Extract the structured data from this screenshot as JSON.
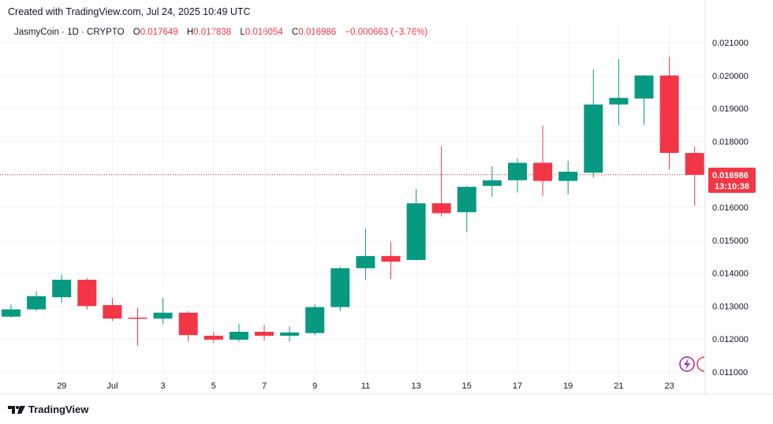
{
  "header": {
    "created": "Created with TradingView.com, Jul 24, 2025 10:49 UTC"
  },
  "legend": {
    "symbol": "JasmyCoin · 1D · CRYPTO",
    "o_label": "O",
    "o_value": "0.017649",
    "h_label": "H",
    "h_value": "0.017838",
    "l_label": "L",
    "l_value": "0.016054",
    "c_label": "C",
    "c_value": "0.016986",
    "change": "−0.000663 (−3.76%)"
  },
  "colors": {
    "up": "#089981",
    "down": "#f23645",
    "grid": "#f0f3fa",
    "text": "#131722"
  },
  "footer": {
    "brand": "TradingView"
  },
  "price_tag": {
    "price": "0.016986",
    "countdown": "13:10:38"
  },
  "chart_data": {
    "type": "candlestick",
    "title": "",
    "xlabel": "",
    "ylabel": "",
    "ylim": [
      0.011,
      0.0213
    ],
    "y_ticks": [
      "0.011000",
      "0.012000",
      "0.013000",
      "0.014000",
      "0.015000",
      "0.016000",
      "0.017000",
      "0.018000",
      "0.019000",
      "0.020000",
      "0.021000"
    ],
    "x_ticks": [
      {
        "i": 2,
        "label": "29"
      },
      {
        "i": 4,
        "label": "Jul"
      },
      {
        "i": 6,
        "label": "3"
      },
      {
        "i": 8,
        "label": "5"
      },
      {
        "i": 10,
        "label": "7"
      },
      {
        "i": 12,
        "label": "9"
      },
      {
        "i": 14,
        "label": "11"
      },
      {
        "i": 16,
        "label": "13"
      },
      {
        "i": 18,
        "label": "15"
      },
      {
        "i": 20,
        "label": "17"
      },
      {
        "i": 22,
        "label": "19"
      },
      {
        "i": 24,
        "label": "21"
      },
      {
        "i": 26,
        "label": "23"
      }
    ],
    "candles": [
      {
        "date": "Jun 27",
        "o": 0.01268,
        "h": 0.01305,
        "l": 0.01265,
        "c": 0.0129
      },
      {
        "date": "Jun 28",
        "o": 0.0129,
        "h": 0.01345,
        "l": 0.01285,
        "c": 0.0133
      },
      {
        "date": "Jun 29",
        "o": 0.01327,
        "h": 0.01395,
        "l": 0.0131,
        "c": 0.0138
      },
      {
        "date": "Jun 30",
        "o": 0.0138,
        "h": 0.01385,
        "l": 0.0129,
        "c": 0.013
      },
      {
        "date": "Jul 1",
        "o": 0.01303,
        "h": 0.01325,
        "l": 0.01255,
        "c": 0.01262
      },
      {
        "date": "Jul 2",
        "o": 0.01265,
        "h": 0.01295,
        "l": 0.0118,
        "c": 0.01262
      },
      {
        "date": "Jul 3",
        "o": 0.01262,
        "h": 0.01325,
        "l": 0.01245,
        "c": 0.0128
      },
      {
        "date": "Jul 4",
        "o": 0.0128,
        "h": 0.01285,
        "l": 0.01192,
        "c": 0.01212
      },
      {
        "date": "Jul 5",
        "o": 0.0121,
        "h": 0.01222,
        "l": 0.01188,
        "c": 0.01198
      },
      {
        "date": "Jul 6",
        "o": 0.01198,
        "h": 0.01245,
        "l": 0.01192,
        "c": 0.01222
      },
      {
        "date": "Jul 7",
        "o": 0.01222,
        "h": 0.01242,
        "l": 0.01195,
        "c": 0.0121
      },
      {
        "date": "Jul 8",
        "o": 0.0121,
        "h": 0.01238,
        "l": 0.01192,
        "c": 0.0122
      },
      {
        "date": "Jul 9",
        "o": 0.01218,
        "h": 0.01305,
        "l": 0.01212,
        "c": 0.01297
      },
      {
        "date": "Jul 10",
        "o": 0.01297,
        "h": 0.0142,
        "l": 0.01285,
        "c": 0.01415
      },
      {
        "date": "Jul 11",
        "o": 0.01415,
        "h": 0.01535,
        "l": 0.0138,
        "c": 0.01452
      },
      {
        "date": "Jul 12",
        "o": 0.01452,
        "h": 0.01495,
        "l": 0.01382,
        "c": 0.01435
      },
      {
        "date": "Jul 13",
        "o": 0.0144,
        "h": 0.01655,
        "l": 0.01438,
        "c": 0.01612
      },
      {
        "date": "Jul 14",
        "o": 0.01612,
        "h": 0.01785,
        "l": 0.01572,
        "c": 0.01582
      },
      {
        "date": "Jul 15",
        "o": 0.01585,
        "h": 0.01665,
        "l": 0.01525,
        "c": 0.01662
      },
      {
        "date": "Jul 16",
        "o": 0.01665,
        "h": 0.01725,
        "l": 0.01632,
        "c": 0.01682
      },
      {
        "date": "Jul 17",
        "o": 0.01682,
        "h": 0.01748,
        "l": 0.01645,
        "c": 0.01735
      },
      {
        "date": "Jul 18",
        "o": 0.01735,
        "h": 0.01848,
        "l": 0.01635,
        "c": 0.0168
      },
      {
        "date": "Jul 19",
        "o": 0.0168,
        "h": 0.0174,
        "l": 0.0164,
        "c": 0.01708
      },
      {
        "date": "Jul 20",
        "o": 0.01705,
        "h": 0.0202,
        "l": 0.0169,
        "c": 0.01912
      },
      {
        "date": "Jul 21",
        "o": 0.01912,
        "h": 0.0205,
        "l": 0.0185,
        "c": 0.01932
      },
      {
        "date": "Jul 22",
        "o": 0.0193,
        "h": 0.02002,
        "l": 0.0185,
        "c": 0.02
      },
      {
        "date": "Jul 23",
        "o": 0.02,
        "h": 0.02057,
        "l": 0.01715,
        "c": 0.01765
      },
      {
        "date": "Jul 24",
        "o": 0.017649,
        "h": 0.017838,
        "l": 0.016054,
        "c": 0.016986
      }
    ],
    "last_price": 0.016986,
    "grid": true,
    "legend": "top-left"
  }
}
